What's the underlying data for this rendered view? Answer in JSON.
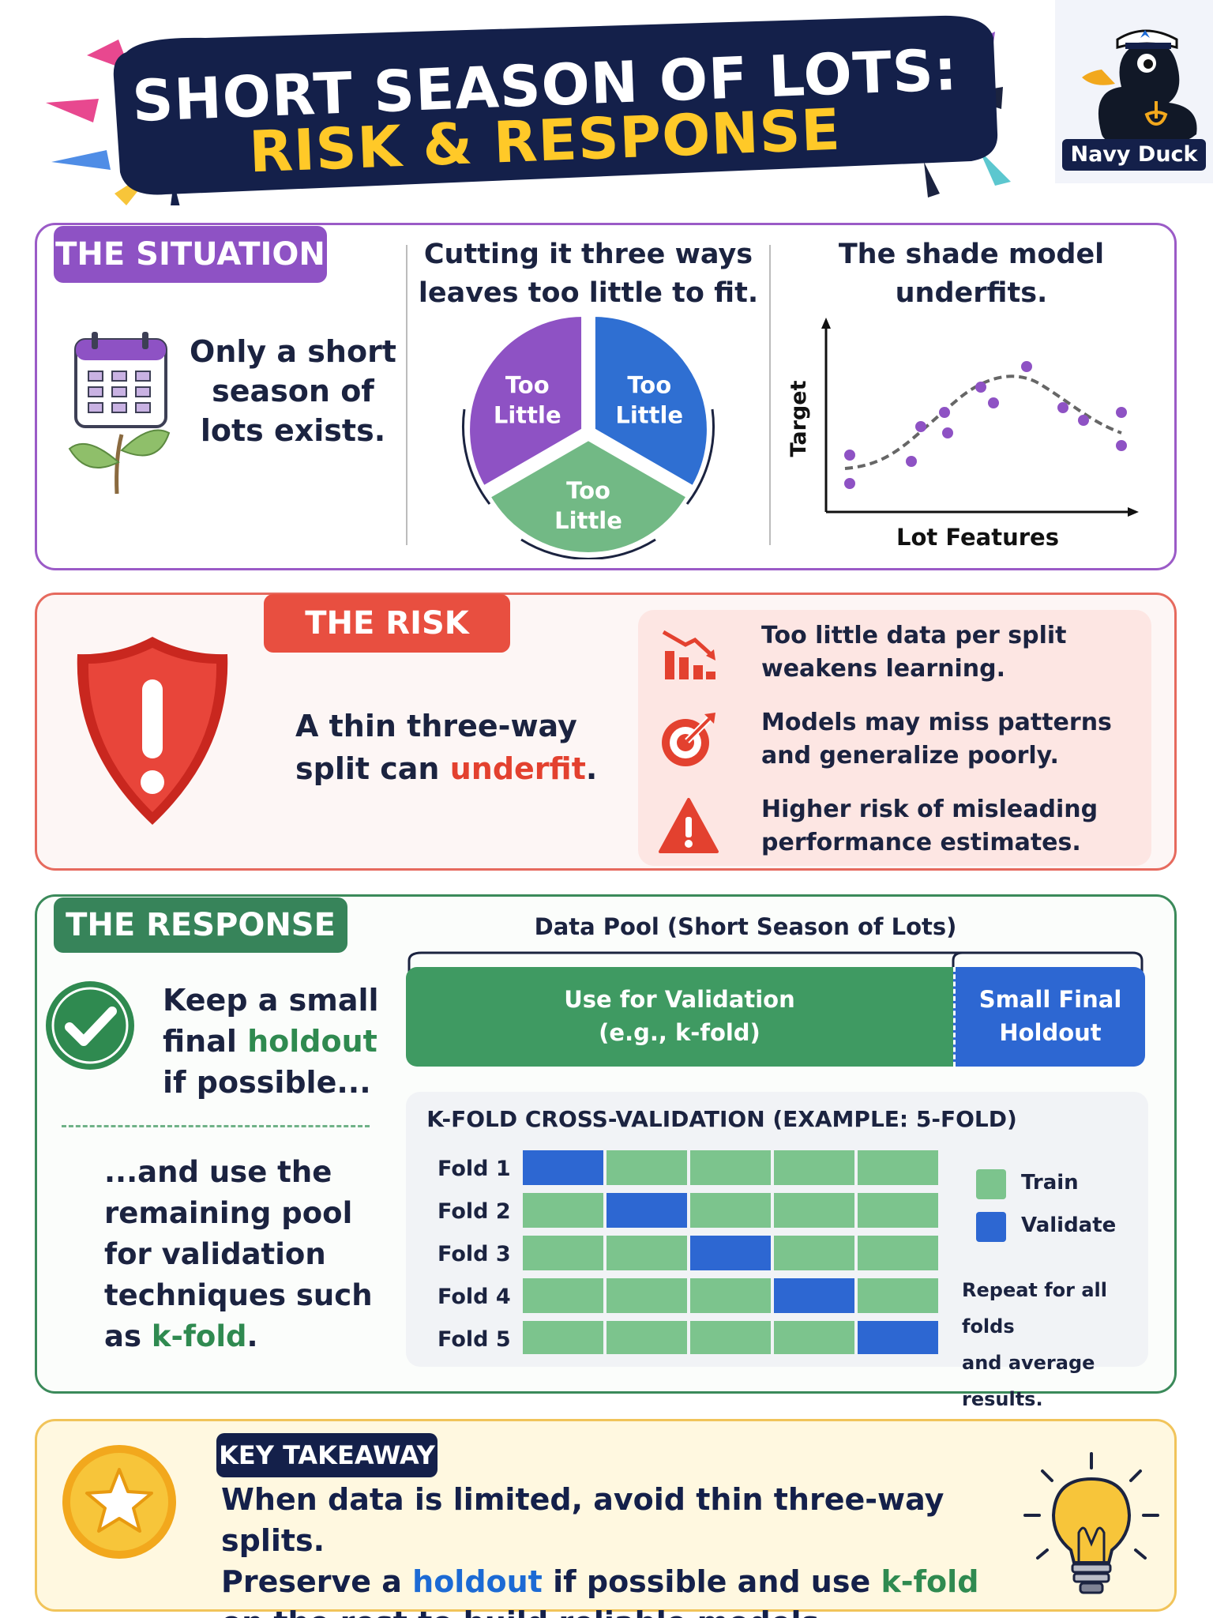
{
  "header": {
    "title_line1": "SHORT SEASON OF LOTS:",
    "title_line2": "RISK & RESPONSE",
    "logo_label": "Navy Duck"
  },
  "situation": {
    "tag": "THE SITUATION",
    "text": "Only a short season of lots exists.",
    "pie_heading": "Cutting it three ways leaves too little to fit.",
    "pie_slices": [
      {
        "label_l1": "Too",
        "label_l2": "Little",
        "color": "#8e52c4",
        "share": 0.3333
      },
      {
        "label_l1": "Too",
        "label_l2": "Little",
        "color": "#2f6fd2",
        "share": 0.3333
      },
      {
        "label_l1": "Too",
        "label_l2": "Little",
        "color": "#72b985",
        "share": 0.3333
      }
    ],
    "fit_heading": "The shade model underfits.",
    "fit_xlabel": "Lot Features",
    "fit_ylabel": "Target"
  },
  "risk": {
    "tag": "THE RISK",
    "statement_pre": "A thin three-way split can ",
    "statement_hl": "underfit",
    "statement_post": ".",
    "points": [
      {
        "icon": "declining-bar-chart-icon",
        "text": "Too little data per split weakens learning."
      },
      {
        "icon": "target-miss-icon",
        "text": "Models may miss patterns and generalize poorly."
      },
      {
        "icon": "warning-triangle-icon",
        "text": "Higher risk of misleading performance estimates."
      }
    ]
  },
  "response": {
    "tag": "THE RESPONSE",
    "step1_pre": "Keep a small final ",
    "step1_hl": "holdout",
    "step1_post": " if possible...",
    "step2_pre": "...and use the remaining pool for validation techniques such as ",
    "step2_hl": "k-fold",
    "step2_post": ".",
    "pool_label": "Data Pool (Short Season of Lots)",
    "pool_validation_l1": "Use for Validation",
    "pool_validation_l2": "(e.g., k-fold)",
    "pool_holdout_l1": "Small Final",
    "pool_holdout_l2": "Holdout",
    "kfold_title": "K-FOLD CROSS-VALIDATION (EXAMPLE: 5-FOLD)",
    "folds": [
      "Fold 1",
      "Fold 2",
      "Fold 3",
      "Fold 4",
      "Fold 5"
    ],
    "fold_count": 5,
    "train_color": "#7cc48d",
    "validate_color": "#2d67d2",
    "legend_train": "Train",
    "legend_validate": "Validate",
    "note_l1": "Repeat for all folds",
    "note_l2": "and average results."
  },
  "takeaway": {
    "tag": "KEY TAKEAWAY",
    "line1": "When data is limited, avoid thin three-way splits.",
    "line2_pre": "Preserve a ",
    "line2_holdout": "holdout",
    "line2_mid": " if possible and use ",
    "line2_kfold": "k-fold",
    "line3": "on the rest to build reliable models."
  }
}
